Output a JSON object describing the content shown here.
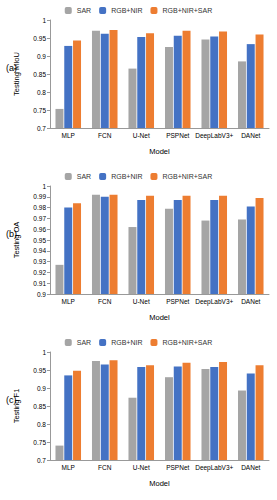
{
  "chart_data": [
    {
      "type": "bar",
      "title": "(a)",
      "x_label": "Model",
      "y_label": "Testing MIoU",
      "categories": [
        "MLP",
        "FCN",
        "U-Net",
        "PSPNet",
        "DeepLabV3+",
        "DANet"
      ],
      "series": [
        {
          "name": "SAR",
          "color": "#a5a5a5",
          "values": [
            0.753,
            0.97,
            0.865,
            0.925,
            0.946,
            0.885
          ]
        },
        {
          "name": "RGB+NIR",
          "color": "#4472c4",
          "values": [
            0.928,
            0.962,
            0.953,
            0.956,
            0.954,
            0.933
          ]
        },
        {
          "name": "RGB+NIR+SAR",
          "color": "#ed7d31",
          "values": [
            0.943,
            0.972,
            0.963,
            0.97,
            0.968,
            0.96
          ]
        }
      ],
      "ylim": [
        0.7,
        1
      ],
      "yticks": [
        0.7,
        0.75,
        0.8,
        0.85,
        0.9,
        0.95,
        1
      ],
      "grid": false,
      "legend": "top"
    },
    {
      "type": "bar",
      "title": "(b)",
      "x_label": "Model",
      "y_label": "Testing OA",
      "categories": [
        "MLP",
        "FCN",
        "U-Net",
        "PSPNet",
        "DeepLabV3+",
        "DANet"
      ],
      "series": [
        {
          "name": "SAR",
          "color": "#a5a5a5",
          "values": [
            0.927,
            0.992,
            0.962,
            0.979,
            0.968,
            0.969
          ]
        },
        {
          "name": "RGB+NIR",
          "color": "#4472c4",
          "values": [
            0.98,
            0.99,
            0.987,
            0.987,
            0.987,
            0.981
          ]
        },
        {
          "name": "RGB+NIR+SAR",
          "color": "#ed7d31",
          "values": [
            0.984,
            0.992,
            0.991,
            0.991,
            0.991,
            0.989
          ]
        }
      ],
      "ylim": [
        0.9,
        1
      ],
      "yticks": [
        0.9,
        0.91,
        0.92,
        0.93,
        0.94,
        0.95,
        0.96,
        0.97,
        0.98,
        0.99,
        1
      ],
      "grid": false,
      "legend": "top"
    },
    {
      "type": "bar",
      "title": "(c)",
      "x_label": "Model",
      "y_label": "Testing F1",
      "categories": [
        "MLP",
        "FCN",
        "U-Net",
        "PSPNet",
        "DeepLabV3+",
        "DANet"
      ],
      "series": [
        {
          "name": "SAR",
          "color": "#a5a5a5",
          "values": [
            0.74,
            0.975,
            0.873,
            0.93,
            0.953,
            0.893
          ]
        },
        {
          "name": "RGB+NIR",
          "color": "#4472c4",
          "values": [
            0.935,
            0.965,
            0.958,
            0.96,
            0.958,
            0.94
          ]
        },
        {
          "name": "RGB+NIR+SAR",
          "color": "#ed7d31",
          "values": [
            0.948,
            0.977,
            0.963,
            0.97,
            0.972,
            0.963
          ]
        }
      ],
      "ylim": [
        0.7,
        1
      ],
      "yticks": [
        0.7,
        0.75,
        0.8,
        0.85,
        0.9,
        0.95,
        1
      ],
      "grid": false,
      "legend": "top"
    }
  ]
}
